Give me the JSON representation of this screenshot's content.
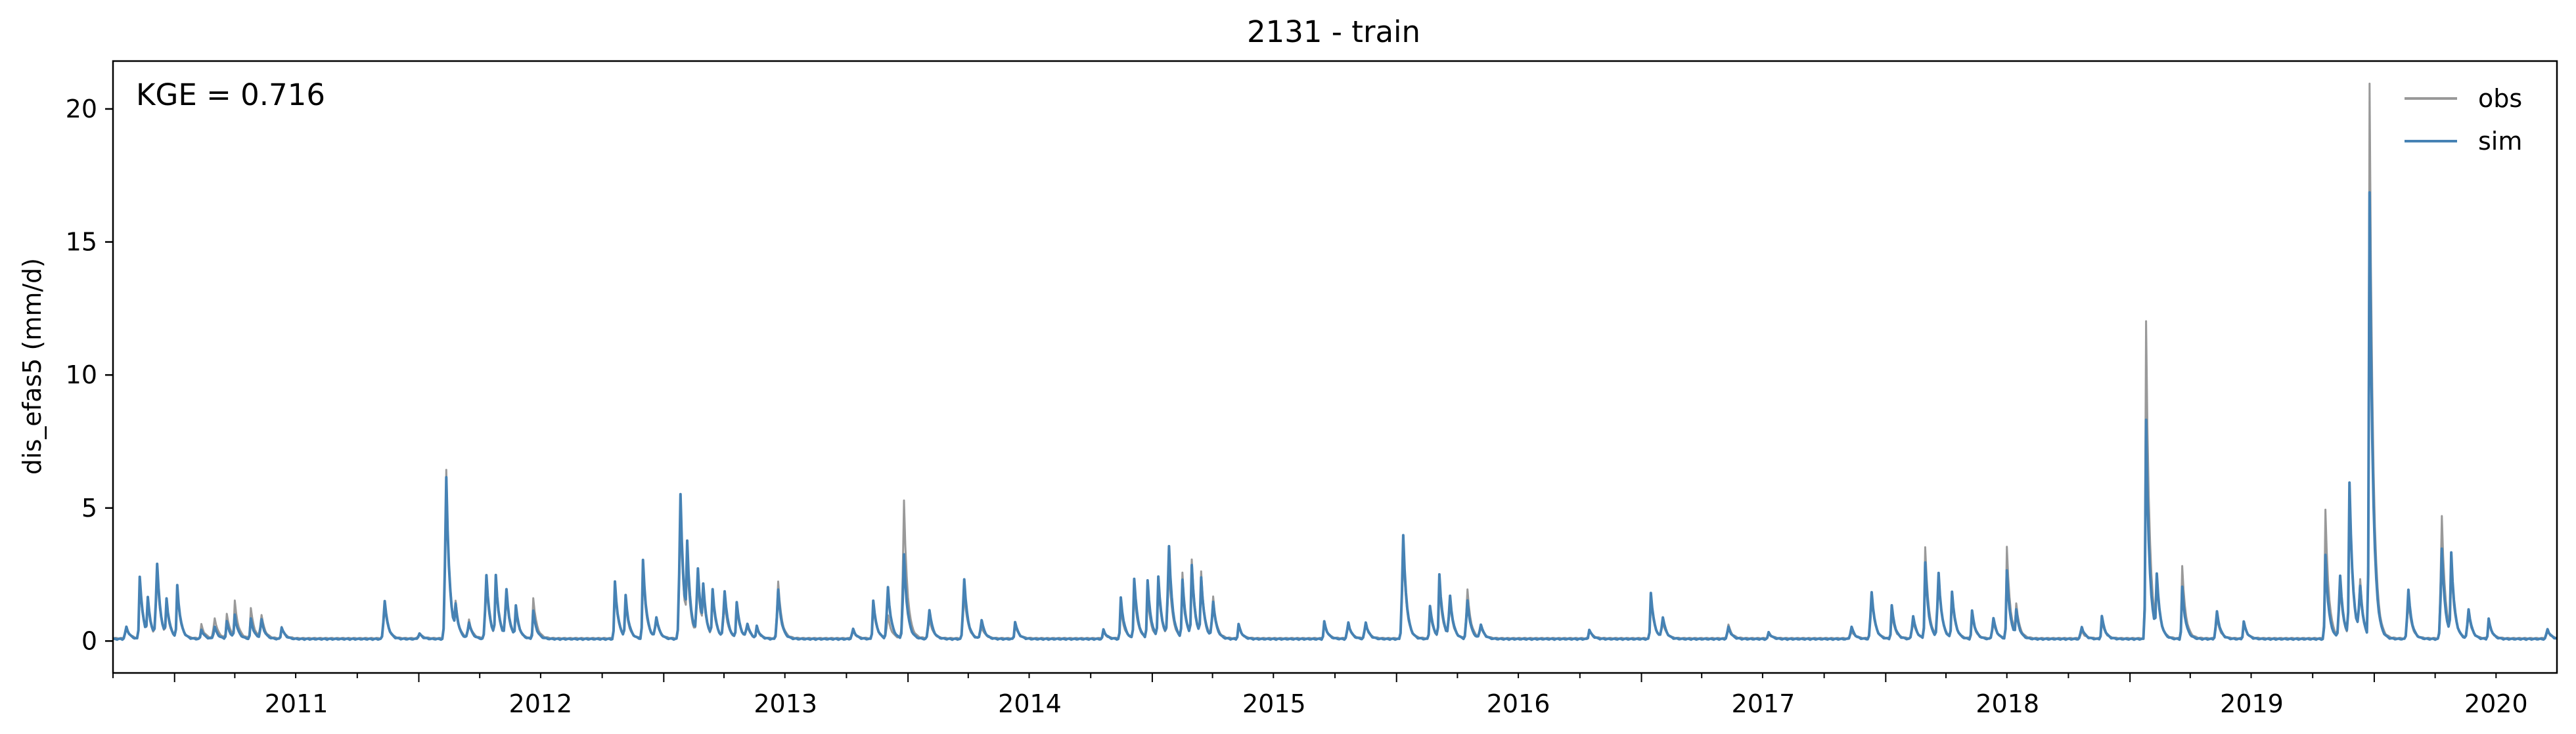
{
  "chart_data": {
    "type": "line",
    "title": "2131 - train",
    "xlabel": "",
    "ylabel": "dis_efas5 (mm/d)",
    "annotation": "KGE = 0.716",
    "xlim": [
      "2010-10-01",
      "2020-09-30"
    ],
    "ylim": [
      -1.2,
      21.8
    ],
    "yticks": [
      0,
      5,
      10,
      15,
      20
    ],
    "xticks": [
      {
        "date": "2011-01-01",
        "label": "2011"
      },
      {
        "date": "2012-01-01",
        "label": "2012"
      },
      {
        "date": "2013-01-01",
        "label": "2013"
      },
      {
        "date": "2014-01-01",
        "label": "2014"
      },
      {
        "date": "2015-01-01",
        "label": "2015"
      },
      {
        "date": "2016-01-01",
        "label": "2016"
      },
      {
        "date": "2017-01-01",
        "label": "2017"
      },
      {
        "date": "2018-01-01",
        "label": "2018"
      },
      {
        "date": "2019-01-01",
        "label": "2019"
      },
      {
        "date": "2020-01-01",
        "label": "2020"
      }
    ],
    "grid": false,
    "legend": "top-right",
    "baseline": {
      "obs": 0.08,
      "sim": 0.05
    },
    "series": [
      {
        "name": "obs",
        "color": "#999999",
        "peaks": [
          [
            "2010-10-20",
            0.6
          ],
          [
            "2010-11-10",
            2.2
          ],
          [
            "2010-11-22",
            1.2
          ],
          [
            "2010-12-05",
            3.0
          ],
          [
            "2010-12-20",
            1.2
          ],
          [
            "2011-01-05",
            1.8
          ],
          [
            "2011-02-10",
            0.6
          ],
          [
            "2011-03-01",
            1.0
          ],
          [
            "2011-03-20",
            1.0
          ],
          [
            "2011-04-01",
            1.4
          ],
          [
            "2011-04-25",
            1.2
          ],
          [
            "2011-05-10",
            1.1
          ],
          [
            "2011-06-10",
            0.5
          ],
          [
            "2011-11-10",
            1.6
          ],
          [
            "2012-01-01",
            0.3
          ],
          [
            "2012-02-10",
            7.8
          ],
          [
            "2012-02-25",
            1.1
          ],
          [
            "2012-03-15",
            0.9
          ],
          [
            "2012-04-10",
            2.6
          ],
          [
            "2012-04-25",
            2.1
          ],
          [
            "2012-05-10",
            1.9
          ],
          [
            "2012-05-25",
            1.0
          ],
          [
            "2012-06-20",
            1.6
          ],
          [
            "2012-10-20",
            2.0
          ],
          [
            "2012-11-05",
            1.3
          ],
          [
            "2012-12-01",
            2.6
          ],
          [
            "2012-12-20",
            0.9
          ],
          [
            "2013-01-25",
            5.8
          ],
          [
            "2013-02-05",
            2.4
          ],
          [
            "2013-02-20",
            2.6
          ],
          [
            "2013-03-01",
            1.4
          ],
          [
            "2013-03-15",
            1.6
          ],
          [
            "2013-04-01",
            1.7
          ],
          [
            "2013-04-20",
            1.2
          ],
          [
            "2013-05-05",
            0.6
          ],
          [
            "2013-05-20",
            0.4
          ],
          [
            "2013-06-20",
            2.7
          ],
          [
            "2013-10-10",
            0.4
          ],
          [
            "2013-11-10",
            1.3
          ],
          [
            "2013-12-01",
            1.1
          ],
          [
            "2013-12-25",
            6.4
          ],
          [
            "2014-02-01",
            1.0
          ],
          [
            "2014-03-25",
            2.2
          ],
          [
            "2014-04-20",
            0.6
          ],
          [
            "2014-06-10",
            0.6
          ],
          [
            "2014-10-20",
            0.3
          ],
          [
            "2014-11-15",
            1.2
          ],
          [
            "2014-12-05",
            1.8
          ],
          [
            "2014-12-25",
            1.6
          ],
          [
            "2015-01-10",
            2.0
          ],
          [
            "2015-01-25",
            3.2
          ],
          [
            "2015-02-15",
            2.5
          ],
          [
            "2015-03-01",
            2.9
          ],
          [
            "2015-03-15",
            2.4
          ],
          [
            "2015-04-01",
            1.9
          ],
          [
            "2015-05-10",
            0.5
          ],
          [
            "2015-09-15",
            0.6
          ],
          [
            "2015-10-20",
            0.7
          ],
          [
            "2015-11-15",
            0.7
          ],
          [
            "2016-01-10",
            4.2
          ],
          [
            "2016-02-20",
            1.1
          ],
          [
            "2016-03-05",
            2.0
          ],
          [
            "2016-03-20",
            1.6
          ],
          [
            "2016-04-15",
            2.3
          ],
          [
            "2016-05-05",
            0.6
          ],
          [
            "2016-10-15",
            0.4
          ],
          [
            "2017-01-15",
            1.6
          ],
          [
            "2017-02-01",
            0.8
          ],
          [
            "2017-05-10",
            0.7
          ],
          [
            "2017-07-10",
            0.3
          ],
          [
            "2017-11-10",
            0.4
          ],
          [
            "2017-12-10",
            2.0
          ],
          [
            "2018-01-10",
            1.0
          ],
          [
            "2018-02-10",
            0.9
          ],
          [
            "2018-03-01",
            3.5
          ],
          [
            "2018-03-20",
            2.9
          ],
          [
            "2018-04-10",
            1.6
          ],
          [
            "2018-05-10",
            0.9
          ],
          [
            "2018-06-10",
            0.8
          ],
          [
            "2018-07-01",
            3.5
          ],
          [
            "2018-07-15",
            1.2
          ],
          [
            "2018-10-20",
            0.4
          ],
          [
            "2018-11-20",
            0.7
          ],
          [
            "2019-01-25",
            12.0
          ],
          [
            "2019-02-10",
            2.0
          ],
          [
            "2019-03-20",
            2.8
          ],
          [
            "2019-05-10",
            1.0
          ],
          [
            "2019-06-20",
            0.6
          ],
          [
            "2019-10-20",
            4.9
          ],
          [
            "2019-11-10",
            2.4
          ],
          [
            "2019-11-25",
            5.5
          ],
          [
            "2019-12-10",
            2.5
          ],
          [
            "2019-12-25",
            20.8
          ],
          [
            "2020-02-20",
            1.8
          ],
          [
            "2020-04-10",
            5.7
          ],
          [
            "2020-04-25",
            2.6
          ],
          [
            "2020-05-20",
            1.2
          ],
          [
            "2020-06-20",
            0.7
          ],
          [
            "2020-09-15",
            0.4
          ]
        ]
      },
      {
        "name": "sim",
        "color": "#4682b4",
        "peaks": [
          [
            "2010-10-20",
            0.6
          ],
          [
            "2010-11-10",
            2.4
          ],
          [
            "2010-11-22",
            1.4
          ],
          [
            "2010-12-05",
            3.4
          ],
          [
            "2010-12-20",
            1.4
          ],
          [
            "2011-01-05",
            2.0
          ],
          [
            "2011-02-10",
            0.4
          ],
          [
            "2011-03-01",
            0.6
          ],
          [
            "2011-03-20",
            0.7
          ],
          [
            "2011-04-01",
            0.9
          ],
          [
            "2011-04-25",
            0.8
          ],
          [
            "2011-05-10",
            0.9
          ],
          [
            "2011-06-10",
            0.5
          ],
          [
            "2011-11-10",
            1.8
          ],
          [
            "2012-01-01",
            0.3
          ],
          [
            "2012-02-10",
            7.5
          ],
          [
            "2012-02-25",
            1.0
          ],
          [
            "2012-03-15",
            0.8
          ],
          [
            "2012-04-10",
            3.0
          ],
          [
            "2012-04-25",
            2.3
          ],
          [
            "2012-05-10",
            2.2
          ],
          [
            "2012-05-25",
            1.2
          ],
          [
            "2012-06-20",
            1.1
          ],
          [
            "2012-10-20",
            2.2
          ],
          [
            "2012-11-05",
            1.6
          ],
          [
            "2012-12-01",
            3.0
          ],
          [
            "2012-12-20",
            1.0
          ],
          [
            "2013-01-25",
            6.7
          ],
          [
            "2013-02-05",
            3.0
          ],
          [
            "2013-02-20",
            3.1
          ],
          [
            "2013-03-01",
            1.6
          ],
          [
            "2013-03-15",
            1.8
          ],
          [
            "2013-04-01",
            2.2
          ],
          [
            "2013-04-20",
            1.4
          ],
          [
            "2013-05-05",
            0.7
          ],
          [
            "2013-05-20",
            0.5
          ],
          [
            "2013-06-20",
            2.3
          ],
          [
            "2013-10-10",
            0.5
          ],
          [
            "2013-11-10",
            1.5
          ],
          [
            "2013-12-01",
            2.4
          ],
          [
            "2013-12-25",
            3.9
          ],
          [
            "2014-02-01",
            1.4
          ],
          [
            "2014-03-25",
            2.8
          ],
          [
            "2014-04-20",
            0.9
          ],
          [
            "2014-06-10",
            0.7
          ],
          [
            "2014-10-20",
            0.4
          ],
          [
            "2014-11-15",
            1.6
          ],
          [
            "2014-12-05",
            2.3
          ],
          [
            "2014-12-25",
            2.2
          ],
          [
            "2015-01-10",
            2.3
          ],
          [
            "2015-01-25",
            4.2
          ],
          [
            "2015-02-15",
            2.2
          ],
          [
            "2015-03-01",
            2.7
          ],
          [
            "2015-03-15",
            2.2
          ],
          [
            "2015-04-01",
            1.7
          ],
          [
            "2015-05-10",
            0.6
          ],
          [
            "2015-09-15",
            0.7
          ],
          [
            "2015-10-20",
            0.8
          ],
          [
            "2015-11-15",
            0.8
          ],
          [
            "2016-01-10",
            4.8
          ],
          [
            "2016-02-20",
            1.3
          ],
          [
            "2016-03-05",
            2.4
          ],
          [
            "2016-03-20",
            1.9
          ],
          [
            "2016-04-15",
            1.8
          ],
          [
            "2016-05-05",
            0.7
          ],
          [
            "2016-10-15",
            0.4
          ],
          [
            "2017-01-15",
            1.8
          ],
          [
            "2017-02-01",
            1.0
          ],
          [
            "2017-05-10",
            0.6
          ],
          [
            "2017-07-10",
            0.3
          ],
          [
            "2017-11-10",
            0.6
          ],
          [
            "2017-12-10",
            2.2
          ],
          [
            "2018-01-10",
            1.3
          ],
          [
            "2018-02-10",
            1.1
          ],
          [
            "2018-03-01",
            2.9
          ],
          [
            "2018-03-20",
            3.0
          ],
          [
            "2018-04-10",
            1.8
          ],
          [
            "2018-05-10",
            1.1
          ],
          [
            "2018-06-10",
            1.0
          ],
          [
            "2018-07-01",
            2.6
          ],
          [
            "2018-07-15",
            1.0
          ],
          [
            "2018-10-20",
            0.6
          ],
          [
            "2018-11-20",
            0.9
          ],
          [
            "2019-01-25",
            8.3
          ],
          [
            "2019-02-10",
            2.2
          ],
          [
            "2019-03-20",
            2.0
          ],
          [
            "2019-05-10",
            1.3
          ],
          [
            "2019-06-20",
            0.7
          ],
          [
            "2019-10-20",
            3.2
          ],
          [
            "2019-11-10",
            2.9
          ],
          [
            "2019-11-25",
            5.8
          ],
          [
            "2019-12-10",
            2.2
          ],
          [
            "2019-12-25",
            16.7
          ],
          [
            "2020-02-20",
            2.3
          ],
          [
            "2020-04-10",
            4.2
          ],
          [
            "2020-04-25",
            3.1
          ],
          [
            "2020-05-20",
            1.4
          ],
          [
            "2020-06-20",
            0.8
          ],
          [
            "2020-09-15",
            0.5
          ]
        ]
      }
    ]
  }
}
